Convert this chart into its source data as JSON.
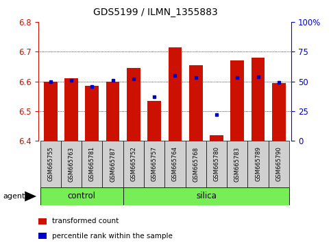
{
  "title": "GDS5199 / ILMN_1355883",
  "samples": [
    "GSM665755",
    "GSM665763",
    "GSM665781",
    "GSM665787",
    "GSM665752",
    "GSM665757",
    "GSM665764",
    "GSM665768",
    "GSM665780",
    "GSM665783",
    "GSM665789",
    "GSM665790"
  ],
  "groups": [
    "control",
    "control",
    "control",
    "control",
    "silica",
    "silica",
    "silica",
    "silica",
    "silica",
    "silica",
    "silica",
    "silica"
  ],
  "transformed_count": [
    6.6,
    6.61,
    6.585,
    6.6,
    6.645,
    6.535,
    6.715,
    6.655,
    6.42,
    6.67,
    6.68,
    6.595
  ],
  "percentile_rank": [
    50,
    51,
    46,
    51,
    52,
    37,
    55,
    53,
    22,
    53,
    54,
    49
  ],
  "ylim": [
    6.4,
    6.8
  ],
  "yticks_left": [
    6.4,
    6.5,
    6.6,
    6.7,
    6.8
  ],
  "yticks_right_pct": [
    0,
    25,
    50,
    75,
    100
  ],
  "yticks_right_labels": [
    "0",
    "25",
    "50",
    "75",
    "100%"
  ],
  "bar_color": "#cc1100",
  "dot_color": "#0000cc",
  "group_bg": "#77ee55",
  "sample_bg": "#d0d0d0",
  "legend_items": [
    "transformed count",
    "percentile rank within the sample"
  ],
  "agent_label": "agent",
  "group_labels": [
    "control",
    "silica"
  ]
}
